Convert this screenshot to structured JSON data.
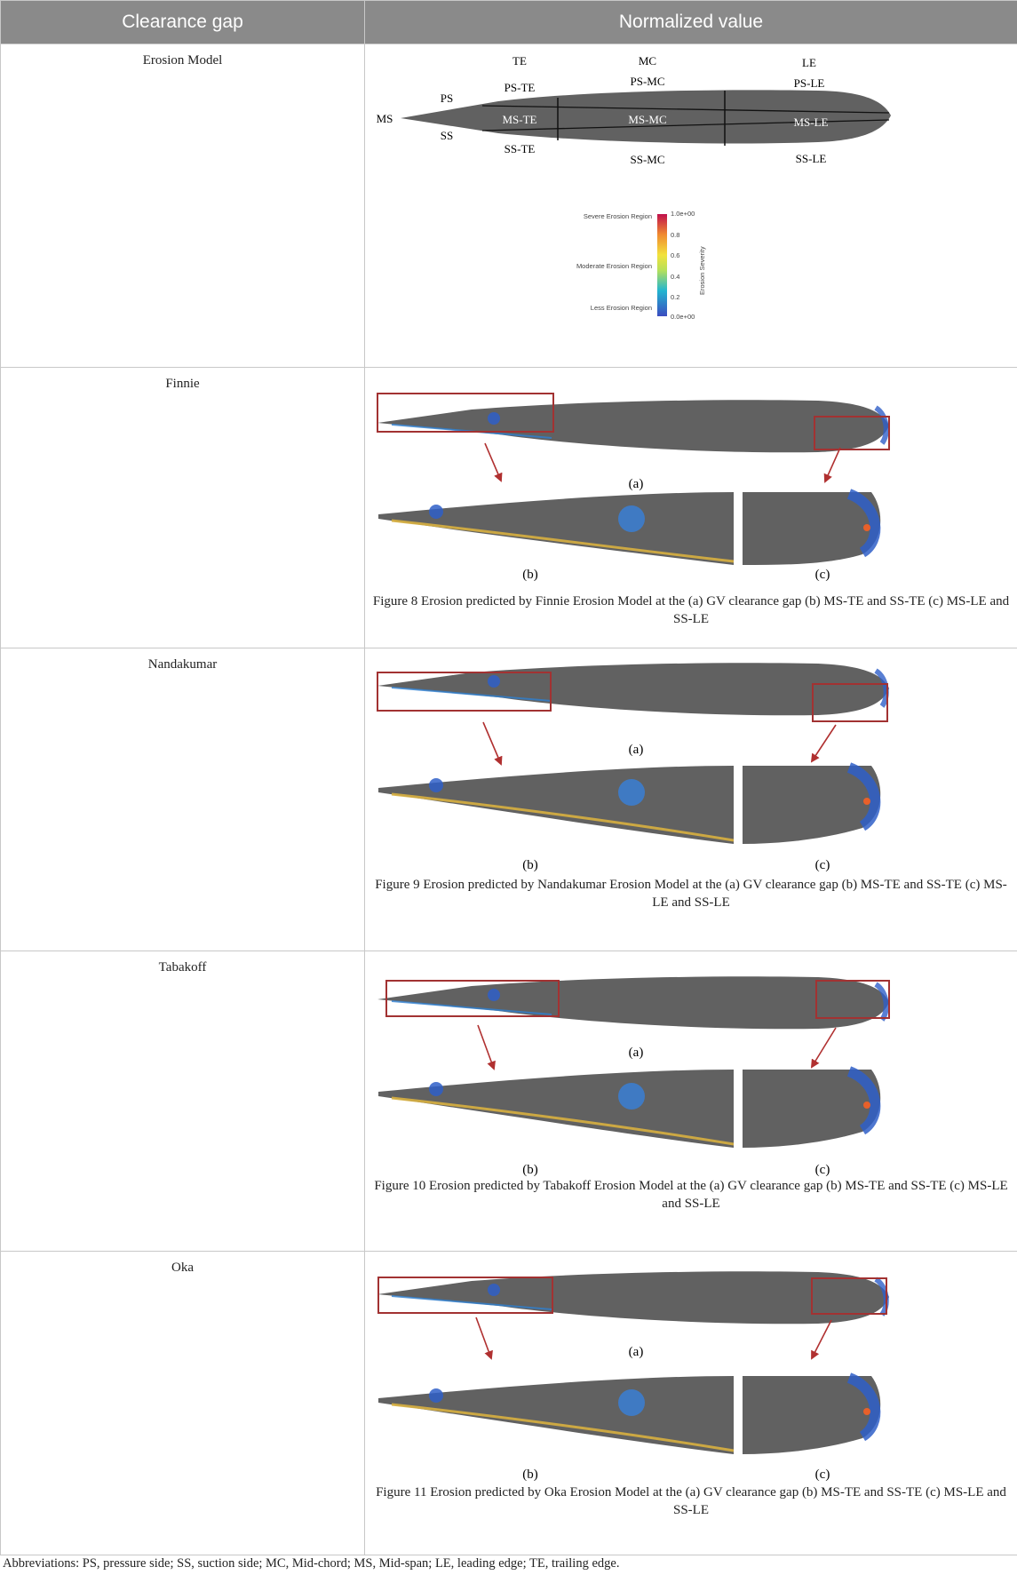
{
  "table": {
    "headers": [
      "Clearance gap",
      "Normalized value"
    ],
    "rows": [
      {
        "label": "Erosion Model"
      },
      {
        "label": "Finnie",
        "caption": "Figure 8 Erosion predicted by Finnie Erosion Model at the (a) GV clearance gap (b) MS-TE and SS-TE (c) MS-LE and SS-LE"
      },
      {
        "label": "Nandakumar",
        "caption": "Figure 9 Erosion predicted by Nandakumar Erosion Model at the (a) GV clearance gap (b) MS-TE and SS-TE (c) MS-LE and SS-LE"
      },
      {
        "label": "Tabakoff",
        "caption": "Figure 10 Erosion predicted by Tabakoff Erosion Model at the (a) GV clearance gap (b) MS-TE and SS-TE (c) MS-LE and SS-LE"
      },
      {
        "label": "Oka",
        "caption": "Figure 11 Erosion predicted by Oka Erosion Model at the (a) GV clearance gap (b) MS-TE and SS-TE (c) MS-LE and SS-LE"
      }
    ]
  },
  "schematic": {
    "te": "TE",
    "mc": "MC",
    "le": "LE",
    "ps": "PS",
    "ss": "SS",
    "ms": "MS",
    "ps_te": "PS-TE",
    "ps_mc": "PS-MC",
    "ps_le": "PS-LE",
    "ms_te": "MS-TE",
    "ms_mc": "MS-MC",
    "ms_le": "MS-LE",
    "ss_te": "SS-TE",
    "ss_mc": "SS-MC",
    "ss_le": "SS-LE"
  },
  "legend": {
    "severe": "Severe Erosion Region",
    "moderate": "Moderate Erosion Region",
    "less": "Less Erosion Region",
    "title": "Erosion Severity",
    "ticks": [
      "1.0e+00",
      "0.8",
      "0.6",
      "0.4",
      "0.2",
      "0.0e+00"
    ]
  },
  "subfig_labels": {
    "a": "(a)",
    "b": "(b)",
    "c": "(c)"
  },
  "colors": {
    "header_bg": "#8a8a8a",
    "blade": "#616161",
    "highlight_box": "#a23232",
    "arrow": "#b03030"
  },
  "footnote": "Abbreviations: PS, pressure side; SS, suction side; MC, Mid-chord; MS, Mid-span; LE, leading edge; TE, trailing edge."
}
